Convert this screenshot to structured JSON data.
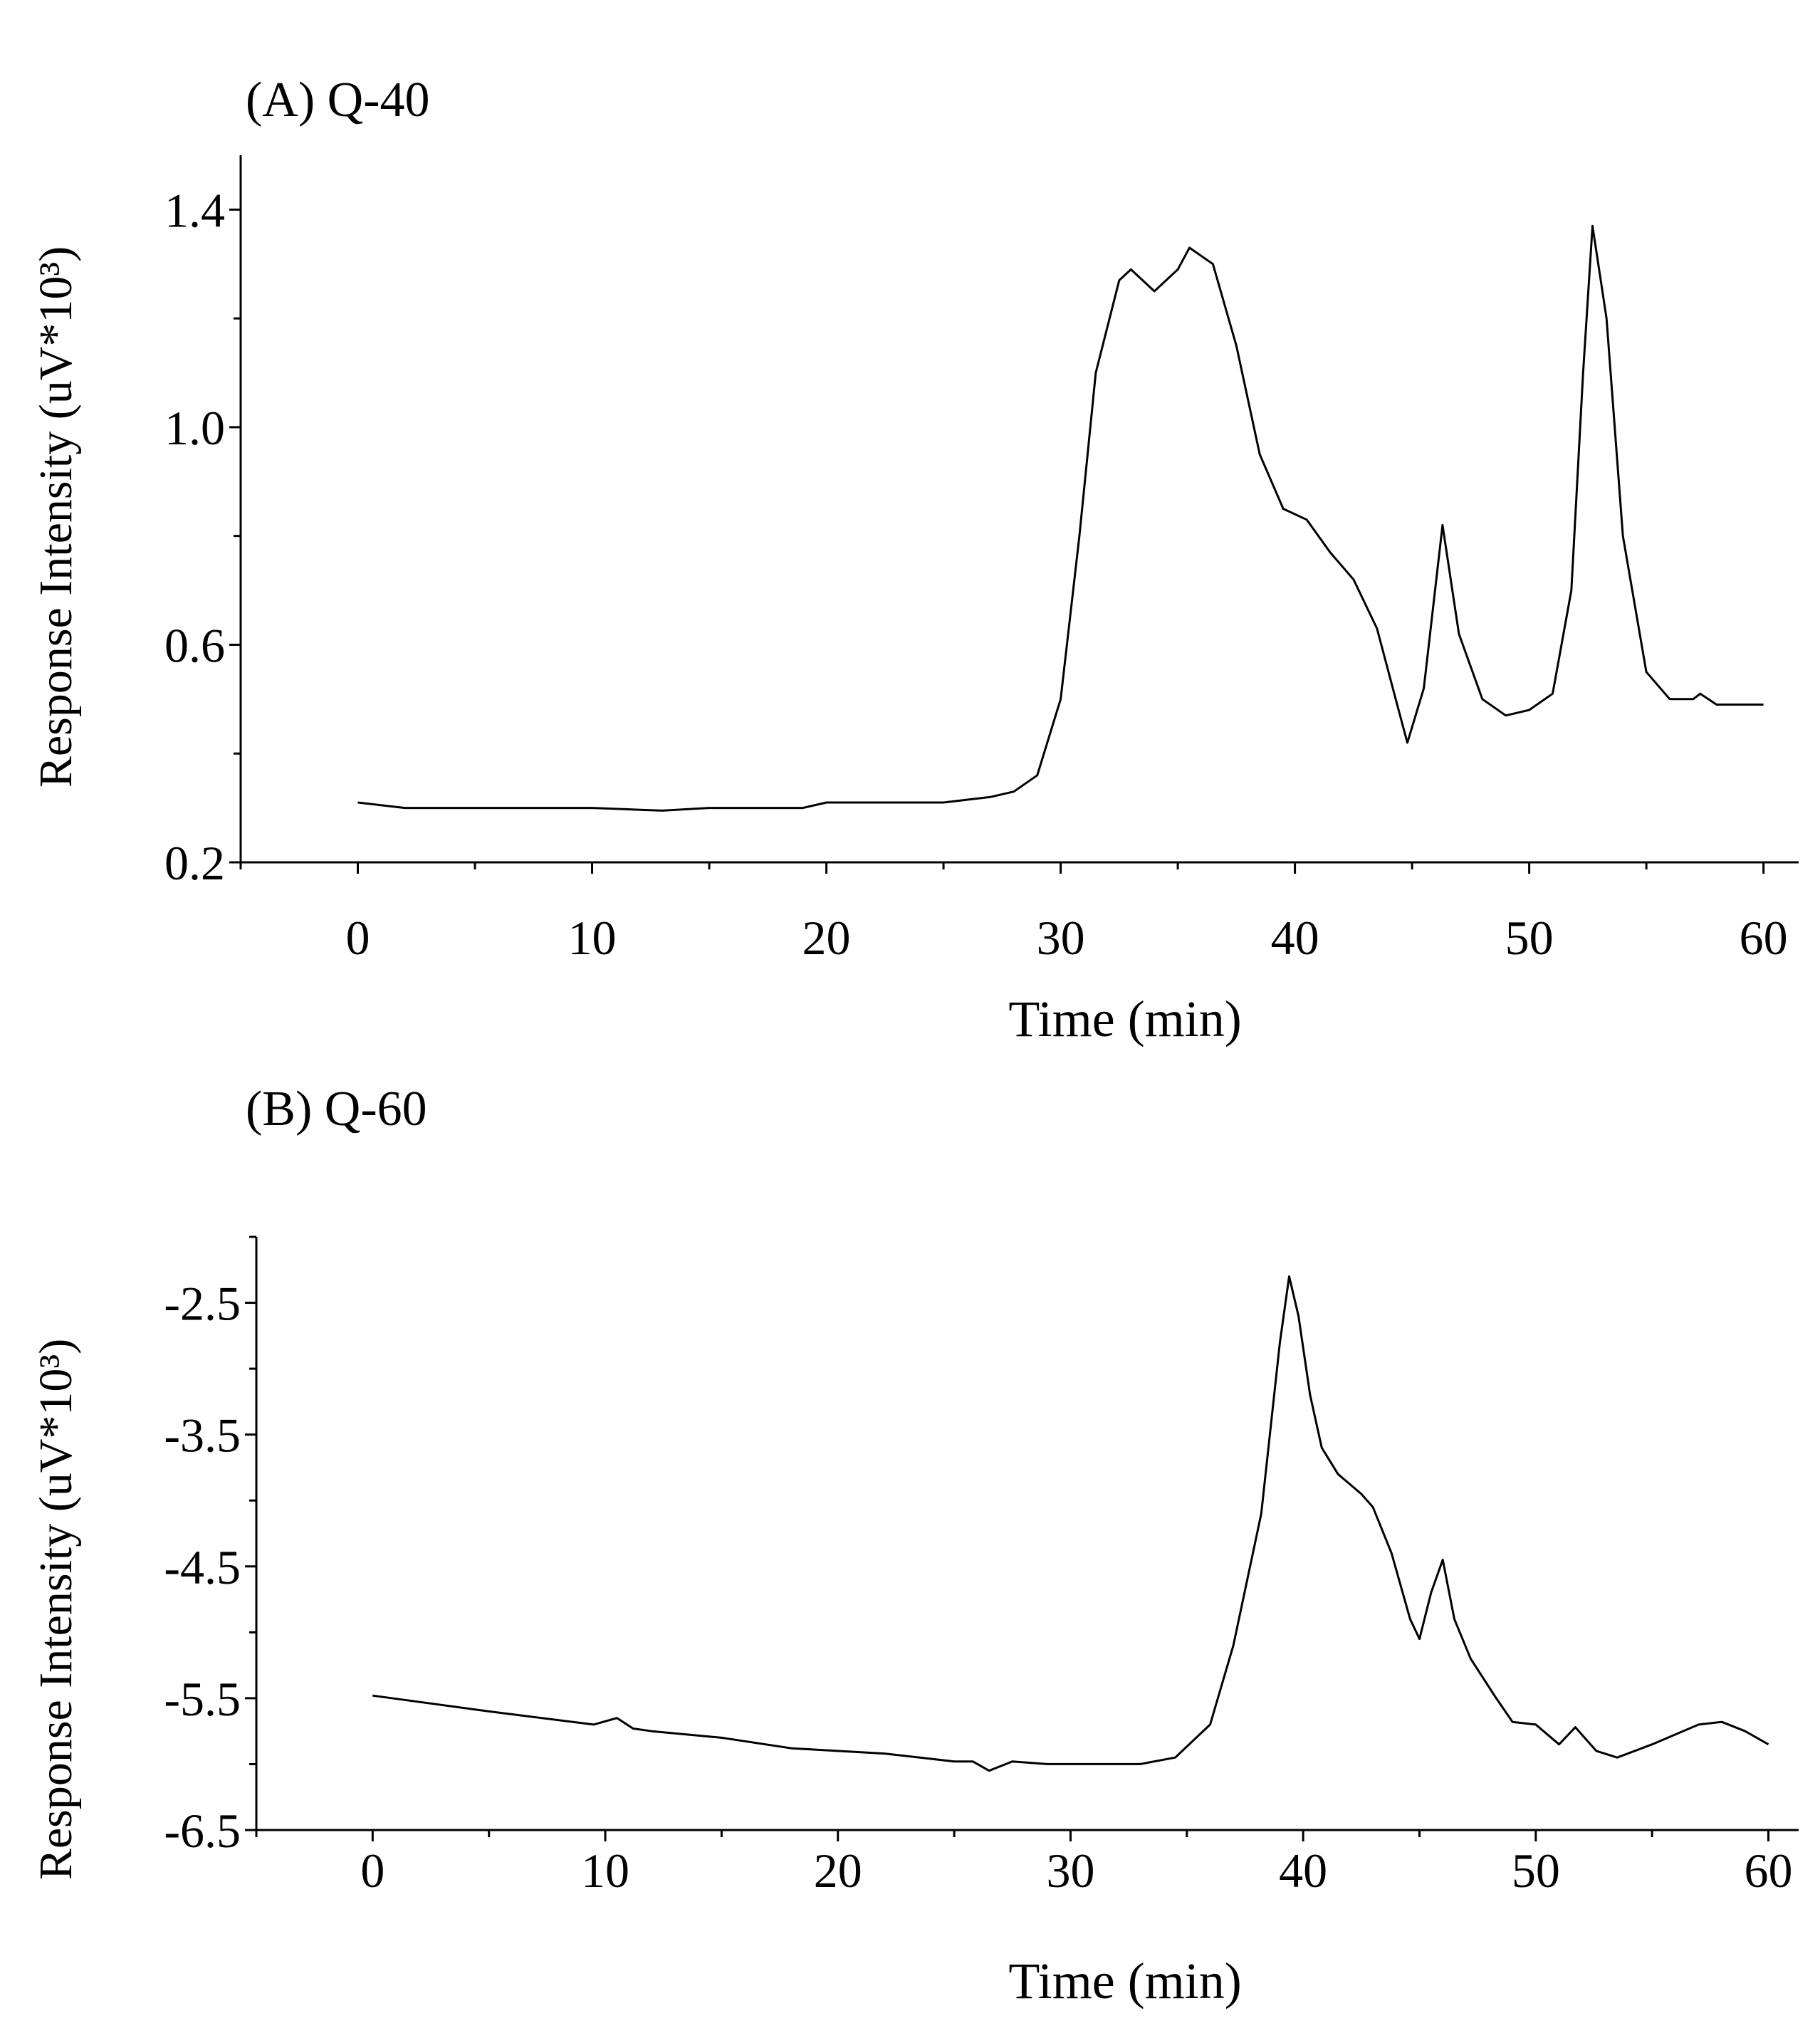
{
  "chart_data": [
    {
      "type": "line",
      "title": "(A) Q-40",
      "xlabel": "Time (min)",
      "ylabel": "Response Intensity (uV*10³)",
      "xlim": [
        -5,
        61.5
      ],
      "ylim": [
        0.2,
        1.5
      ],
      "xticks": [
        0,
        10,
        20,
        30,
        40,
        50,
        60
      ],
      "xtick_labels": [
        "0",
        "10",
        "20",
        "30",
        "40",
        "50",
        "60"
      ],
      "yticks": [
        0.2,
        0.6,
        1.0,
        1.4
      ],
      "ytick_labels": [
        "0.2",
        "0.6",
        "1.0",
        "1.4"
      ],
      "x_minor_step": 5,
      "y_minor_step": 0.2,
      "grid": false,
      "line_color": "#000000",
      "x": [
        0,
        2,
        5,
        10,
        13,
        15,
        19,
        20,
        25,
        27,
        28,
        29,
        30,
        30.8,
        31.5,
        32.5,
        33,
        34,
        35,
        35.5,
        36.5,
        37.5,
        38.5,
        39.5,
        40.5,
        41.5,
        42.5,
        43.5,
        44.3,
        44.8,
        45.5,
        46.3,
        47,
        48,
        49,
        50,
        51,
        51.8,
        52.3,
        52.7,
        53.3,
        54,
        55,
        56,
        57,
        57.3,
        58,
        60
      ],
      "y": [
        0.31,
        0.3,
        0.3,
        0.3,
        0.295,
        0.3,
        0.3,
        0.31,
        0.31,
        0.32,
        0.33,
        0.36,
        0.5,
        0.8,
        1.1,
        1.27,
        1.29,
        1.25,
        1.29,
        1.33,
        1.3,
        1.15,
        0.95,
        0.85,
        0.83,
        0.77,
        0.72,
        0.63,
        0.5,
        0.42,
        0.52,
        0.82,
        0.62,
        0.5,
        0.47,
        0.48,
        0.51,
        0.7,
        1.1,
        1.37,
        1.2,
        0.8,
        0.55,
        0.5,
        0.5,
        0.51,
        0.49,
        0.49
      ]
    },
    {
      "type": "line",
      "title": "(B) Q-60",
      "xlabel": "Time (min)",
      "ylabel": "Response Intensity (uV*10³)",
      "xlim": [
        -5,
        61.3
      ],
      "ylim": [
        -6.5,
        -2.0
      ],
      "xticks": [
        0,
        10,
        20,
        30,
        40,
        50,
        60
      ],
      "xtick_labels": [
        "0",
        "10",
        "20",
        "30",
        "40",
        "50",
        "60"
      ],
      "yticks": [
        -6.5,
        -5.5,
        -4.5,
        -3.5,
        -2.5
      ],
      "ytick_labels": [
        "-6.5",
        "-5.5",
        "-4.5",
        "-3.5",
        "-2.5"
      ],
      "x_minor_step": 5,
      "y_minor_step": 0.5,
      "grid": false,
      "line_color": "#000000",
      "x": [
        0,
        5,
        9.5,
        10.5,
        11.2,
        12,
        15,
        18,
        22,
        25,
        25.8,
        26.5,
        27.5,
        29,
        33,
        34.5,
        36,
        37,
        38.2,
        39,
        39.4,
        39.8,
        40.3,
        40.8,
        41.5,
        42.5,
        43,
        43.8,
        44.6,
        45,
        45.5,
        46,
        46.5,
        47.2,
        48.3,
        49,
        50,
        51,
        51.7,
        52.6,
        53.5,
        55,
        57,
        58,
        59,
        60
      ],
      "y": [
        -5.48,
        -5.6,
        -5.7,
        -5.65,
        -5.73,
        -5.75,
        -5.8,
        -5.88,
        -5.92,
        -5.98,
        -5.98,
        -6.05,
        -5.98,
        -6.0,
        -6.0,
        -5.95,
        -5.7,
        -5.1,
        -4.1,
        -2.8,
        -2.3,
        -2.6,
        -3.2,
        -3.6,
        -3.8,
        -3.95,
        -4.05,
        -4.4,
        -4.9,
        -5.05,
        -4.7,
        -4.45,
        -4.9,
        -5.2,
        -5.5,
        -5.68,
        -5.7,
        -5.85,
        -5.72,
        -5.9,
        -5.95,
        -5.85,
        -5.7,
        -5.68,
        -5.75,
        -5.85
      ]
    }
  ]
}
